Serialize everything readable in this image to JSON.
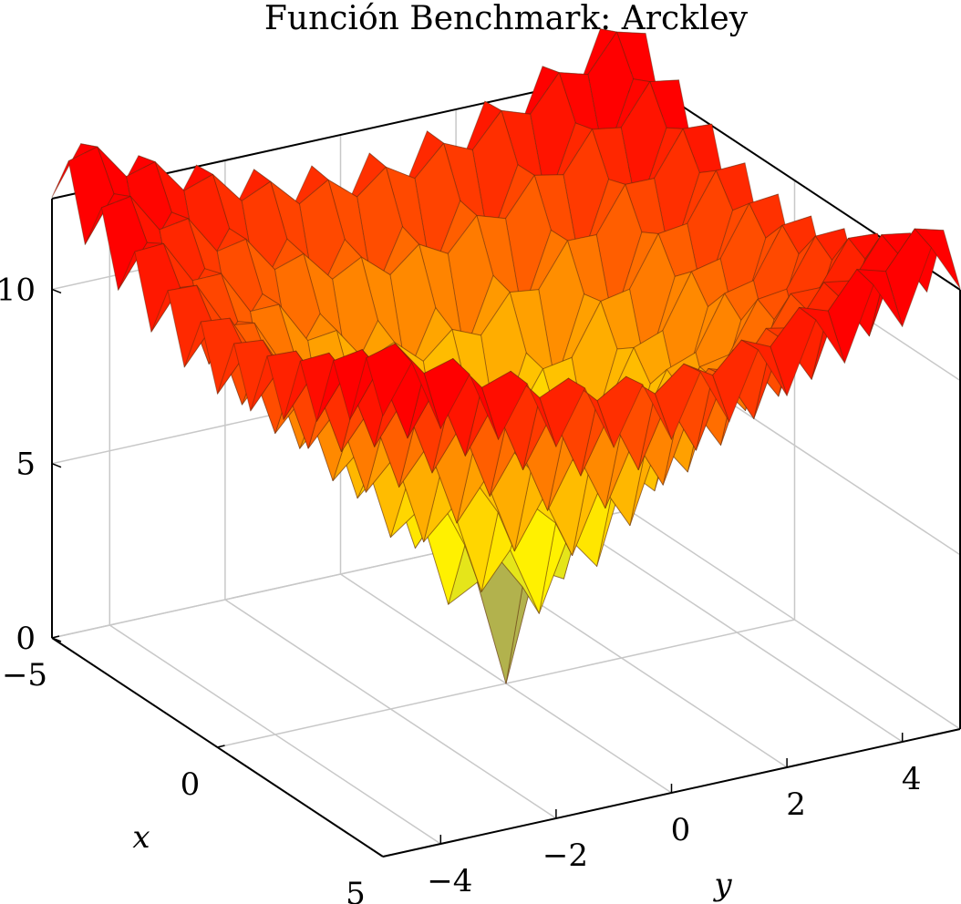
{
  "chart_data": {
    "type": "surface",
    "title": "Función Benchmark: Arckley",
    "xlabel": "x",
    "ylabel": "y",
    "zlabel": "",
    "function": "ackley",
    "xlim": [
      -5,
      5
    ],
    "ylim": [
      -5,
      5
    ],
    "zlim": [
      0,
      12.6
    ],
    "grid": true,
    "colormap": [
      "#3333cc",
      "#ffff00",
      "#ff9900",
      "#ff0000"
    ],
    "x": [
      -5,
      -4.5,
      -4,
      -3.5,
      -3,
      -2.5,
      -2,
      -1.5,
      -1,
      -0.5,
      0,
      0.5,
      1,
      1.5,
      2,
      2.5,
      3,
      3.5,
      4,
      4.5,
      5
    ],
    "y": [
      -5,
      -4.5,
      -4,
      -3.5,
      -3,
      -2.5,
      -2,
      -1.5,
      -1,
      -0.5,
      0,
      0.5,
      1,
      1.5,
      2,
      2.5,
      3,
      3.5,
      4,
      4.5,
      5
    ],
    "x_ticks": [
      "−5",
      "0",
      "5"
    ],
    "y_ticks": [
      "−4",
      "−2",
      "0",
      "2",
      "4"
    ],
    "z_ticks": [
      "0",
      "5",
      "10"
    ]
  }
}
